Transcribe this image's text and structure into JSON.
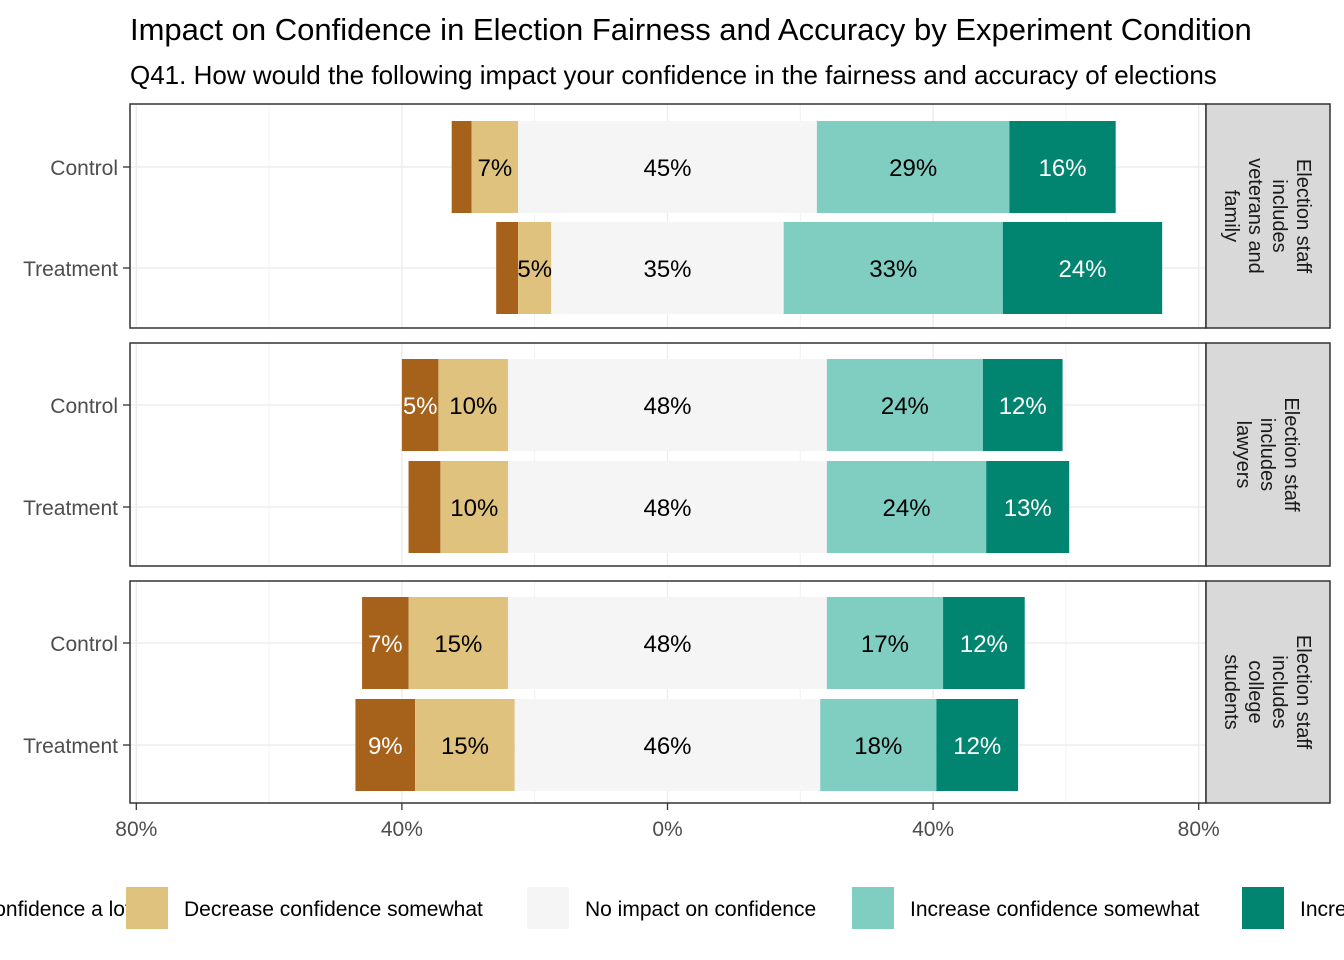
{
  "title": "Impact on Confidence in Election Fairness and Accuracy by Experiment Condition",
  "subtitle": "Q41. How would the following impact your confidence in the fairness and accuracy of elections",
  "chart_data": {
    "type": "bar",
    "orientation": "horizontal-diverging-stacked",
    "title": "Impact on Confidence in Election Fairness and Accuracy by Experiment Condition",
    "subtitle": "Q41. How would the following impact your confidence in the fairness and accuracy of elections",
    "xlim": [
      -80,
      80
    ],
    "x_ticks": [
      -80,
      -40,
      0,
      40,
      80
    ],
    "x_tick_labels": [
      "80%",
      "40%",
      "0%",
      "40%",
      "80%"
    ],
    "grid": true,
    "legend_position": "bottom",
    "categories_order": [
      "Decrease confidence a lot",
      "Decrease confidence somewhat",
      "No impact on confidence",
      "Increase confidence somewhat",
      "Increase confidence a lot"
    ],
    "colors": [
      "#a6611a",
      "#dfc27d",
      "#f5f5f5",
      "#80cdc1",
      "#018571"
    ],
    "label_colors": [
      "#ffffff",
      "#000000",
      "#000000",
      "#000000",
      "#ffffff"
    ],
    "legend": [
      {
        "label": "Decrease confidence a lot",
        "color": "#a6611a"
      },
      {
        "label": "Decrease confidence somewhat",
        "color": "#dfc27d"
      },
      {
        "label": "No impact on confidence",
        "color": "#f5f5f5"
      },
      {
        "label": "Increase confidence somewhat",
        "color": "#80cdc1"
      },
      {
        "label": "Increase confidence a lot",
        "color": "#018571"
      }
    ],
    "panels": [
      {
        "strip_label_lines": [
          "Election staff",
          "includes",
          "veterans and",
          "family"
        ],
        "rows": [
          {
            "label": "Control",
            "values": [
              3,
              7,
              45,
              29,
              16
            ],
            "labels": [
              "",
              "7%",
              "45%",
              "29%",
              "16%"
            ]
          },
          {
            "label": "Treatment",
            "values": [
              3.3,
              5,
              35,
              33,
              24
            ],
            "labels": [
              "",
              "5%",
              "35%",
              "33%",
              "24%"
            ]
          }
        ]
      },
      {
        "strip_label_lines": [
          "Election staff",
          "includes",
          "lawyers"
        ],
        "rows": [
          {
            "label": "Control",
            "values": [
              5.5,
              10.5,
              48,
              23.5,
              12
            ],
            "labels": [
              "5%",
              "10%",
              "48%",
              "24%",
              "12%"
            ]
          },
          {
            "label": "Treatment",
            "values": [
              4.8,
              10.2,
              48,
              24,
              12.5
            ],
            "labels": [
              "",
              "10%",
              "48%",
              "24%",
              "13%"
            ]
          }
        ]
      },
      {
        "strip_label_lines": [
          "Election staff",
          "includes",
          "college",
          "students"
        ],
        "rows": [
          {
            "label": "Control",
            "values": [
              7,
              15,
              48,
              17.5,
              12.3
            ],
            "labels": [
              "7%",
              "15%",
              "48%",
              "17%",
              "12%"
            ]
          },
          {
            "label": "Treatment",
            "values": [
              9,
              15,
              46,
              17.5,
              12.3
            ],
            "labels": [
              "9%",
              "15%",
              "46%",
              "18%",
              "12%"
            ]
          }
        ]
      }
    ]
  }
}
